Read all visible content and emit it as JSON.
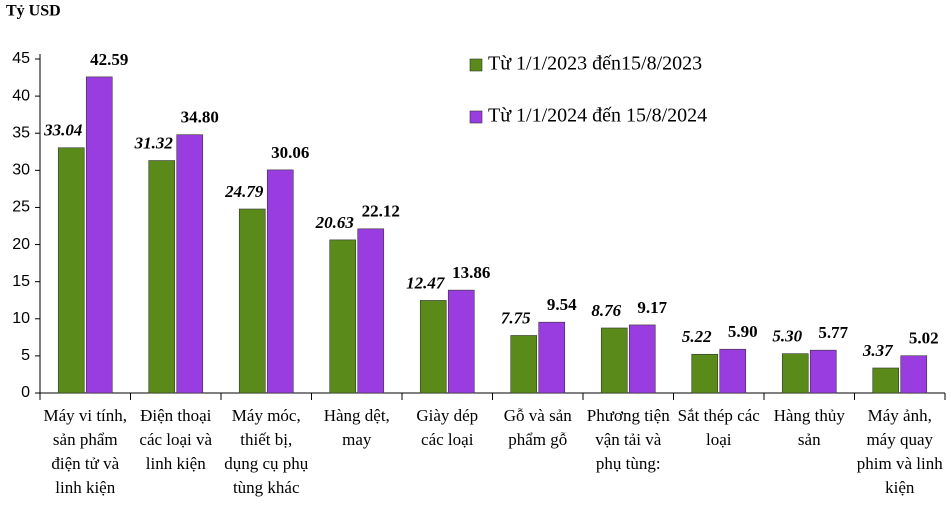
{
  "chart_data": {
    "type": "bar",
    "y_label": "Tỷ USD",
    "categories": [
      "Máy vi tính, sản phẩm điện tử và linh kiện",
      "Điện thoại các loại và linh kiện",
      "Máy móc, thiết bị, dụng cụ phụ tùng khác",
      "Hàng dệt, may",
      "Giày dép các loại",
      "Gỗ và sản phẩm gỗ",
      "Phương tiện vận tải và phụ tùng:",
      "Sắt thép các loại",
      "Hàng thủy sản",
      "Máy ảnh, máy quay phim và linh kiện"
    ],
    "series": [
      {
        "name": "Từ 1/1/2023 đến15/8/2023",
        "color": "#5a8a1a",
        "values": [
          33.04,
          31.32,
          24.79,
          20.63,
          12.47,
          7.75,
          8.76,
          5.22,
          5.3,
          3.37
        ],
        "value_labels": [
          "33.04",
          "31.32",
          "24.79",
          "20.63",
          "12.47",
          "7.75",
          "8.76",
          "5.22",
          "5.30",
          "3.37"
        ]
      },
      {
        "name": "Từ 1/1/2024 đến 15/8/2024",
        "color": "#9a3de0",
        "values": [
          42.59,
          34.8,
          30.06,
          22.12,
          13.86,
          9.54,
          9.17,
          5.9,
          5.77,
          5.02
        ],
        "value_labels": [
          "42.59",
          "34.80",
          "30.06",
          "22.12",
          "13.86",
          "9.54",
          "9.17",
          "5.90",
          "5.77",
          "5.02"
        ]
      }
    ],
    "ylim": [
      0,
      45
    ],
    "yticks": [
      0,
      5,
      10,
      15,
      20,
      25,
      30,
      35,
      40,
      45
    ]
  }
}
